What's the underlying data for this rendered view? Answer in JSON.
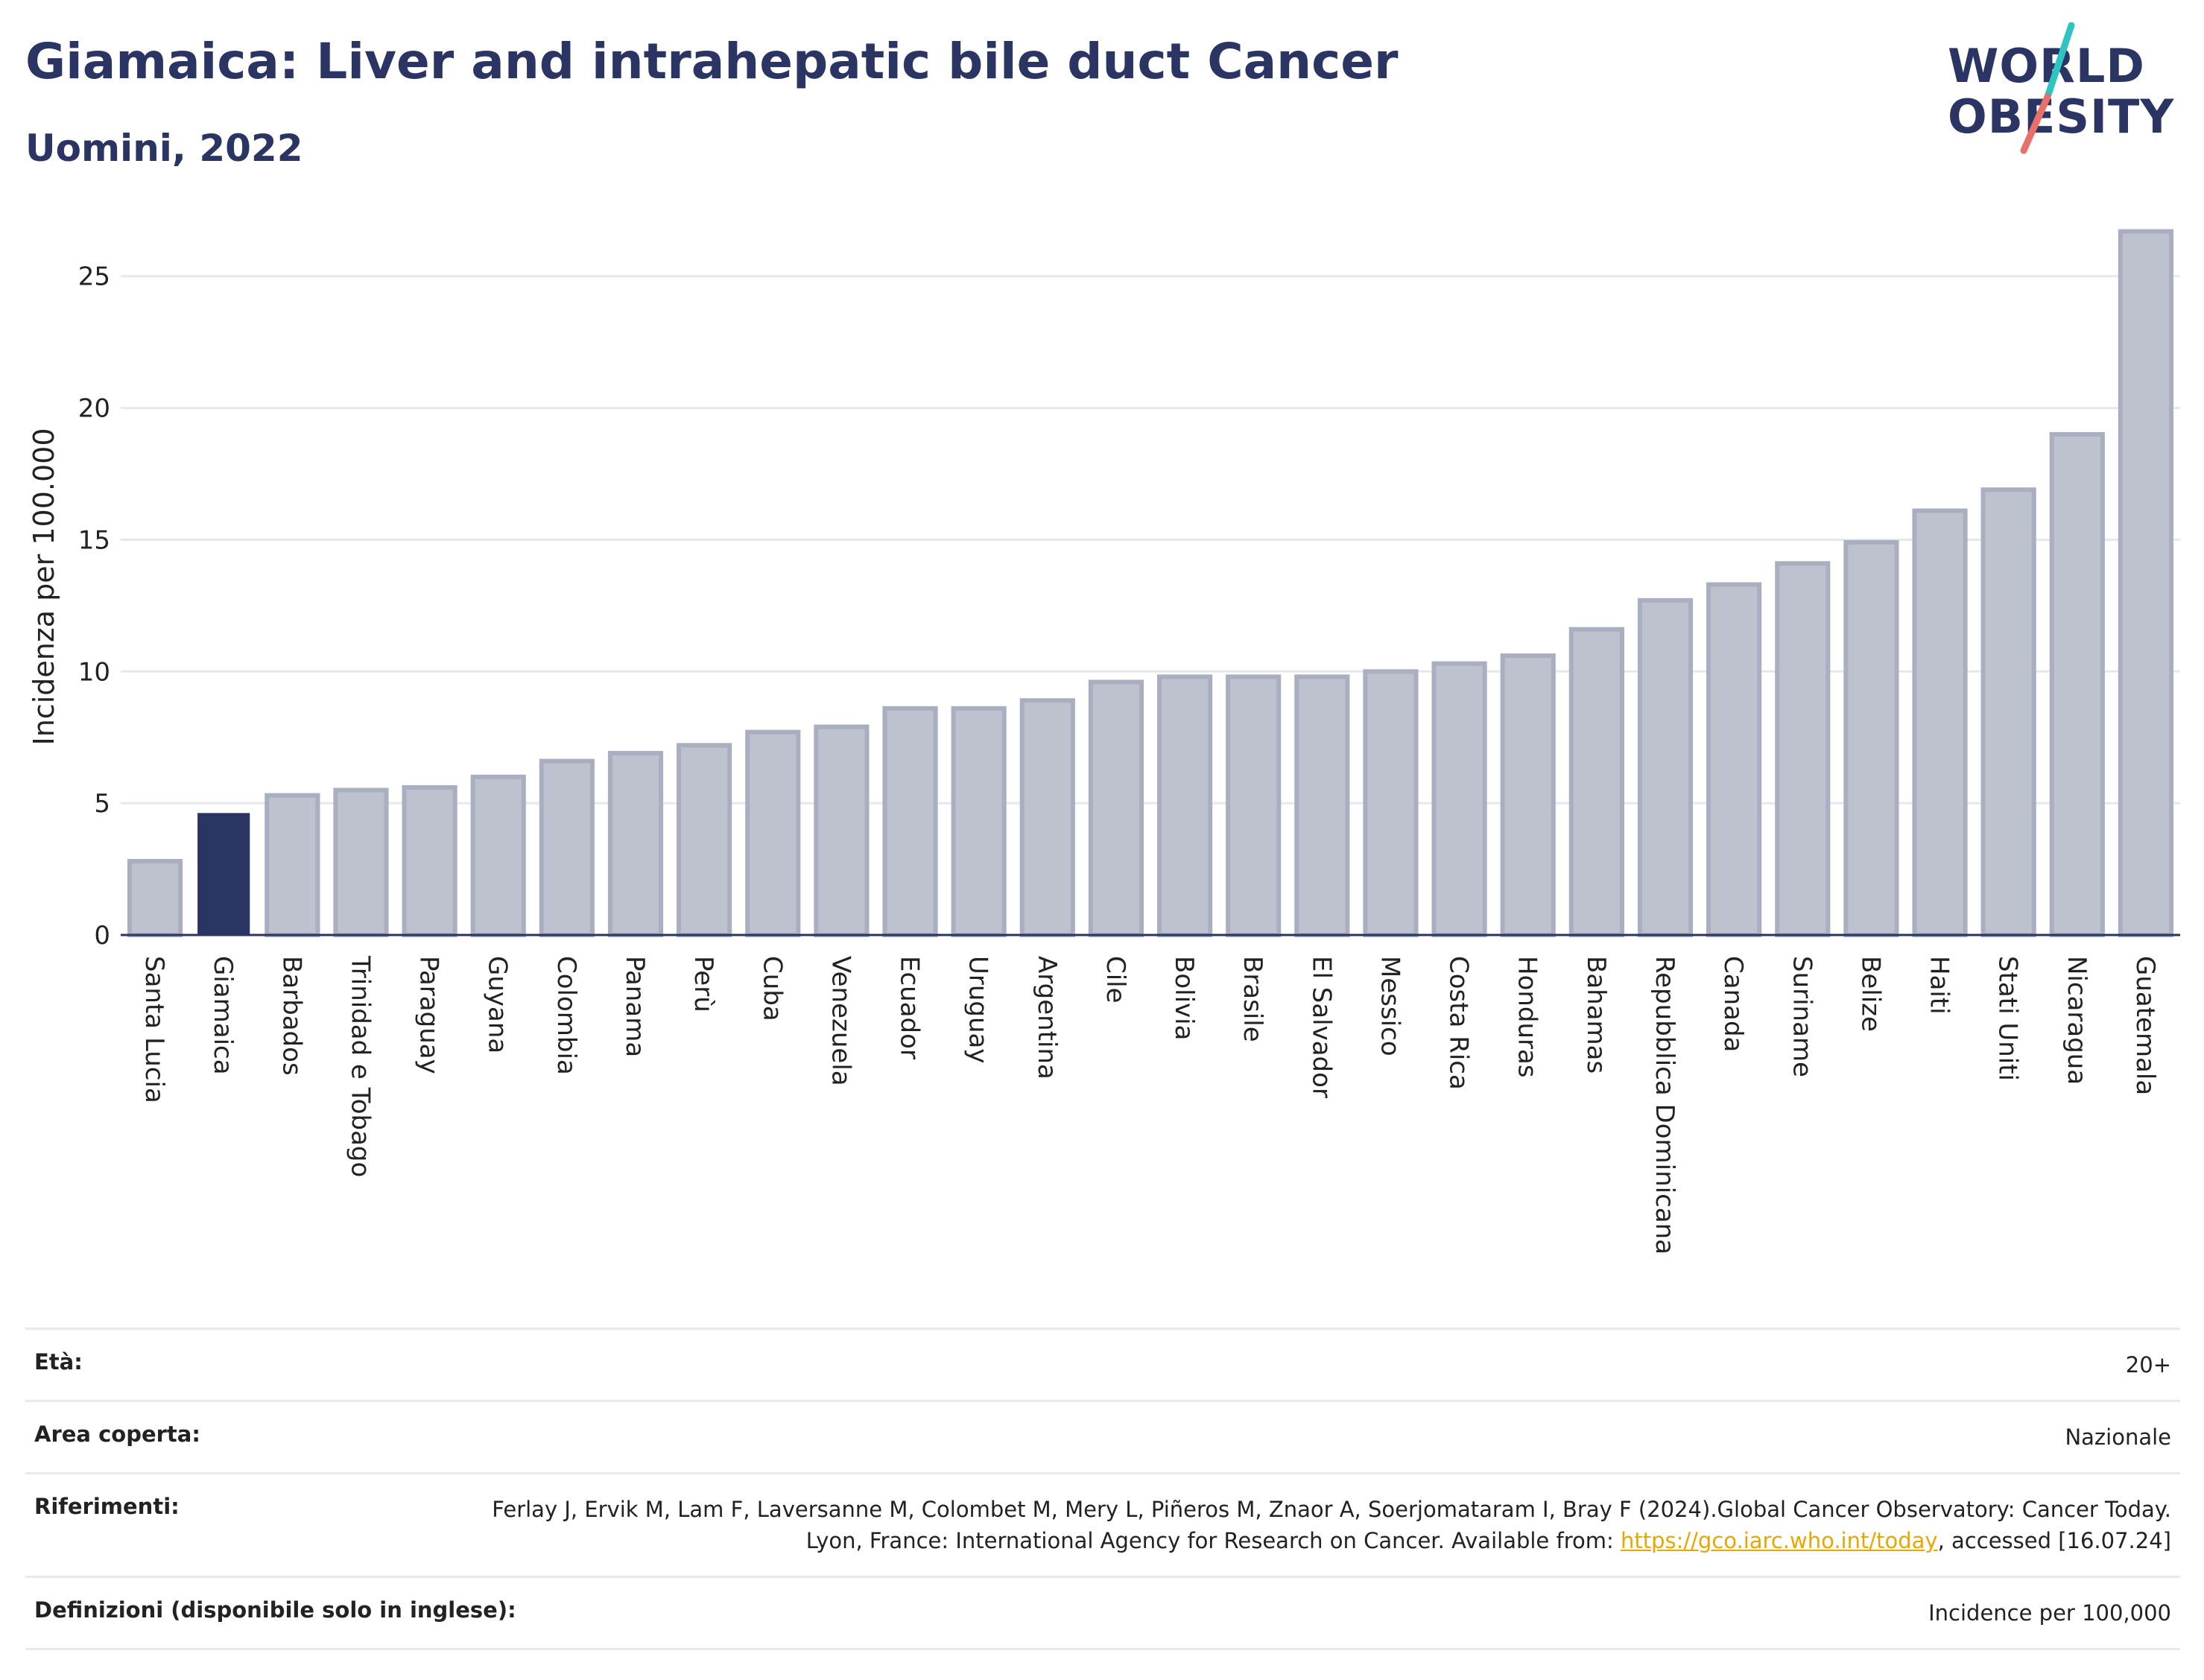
{
  "header": {
    "title": "Giamaica: Liver and intrahepatic bile duct Cancer",
    "subtitle": "Uomini, 2022"
  },
  "logo": {
    "line1": "WORLD",
    "line2": "OBESITY",
    "accent_colors": [
      "#2ec4c1",
      "#e8706a"
    ]
  },
  "chart_data": {
    "type": "bar",
    "ylabel": "Incidenza per 100.000",
    "ylim": [
      0,
      27
    ],
    "yticks": [
      0,
      5,
      10,
      15,
      20,
      25
    ],
    "grid": true,
    "highlight": "Giamaica",
    "colors": {
      "default": "#bec2cf",
      "default_border": "#a9aec0",
      "highlight": "#2b3563"
    },
    "categories": [
      "Santa Lucia",
      "Giamaica",
      "Barbados",
      "Trinidad e Tobago",
      "Paraguay",
      "Guyana",
      "Colombia",
      "Panama",
      "Perù",
      "Cuba",
      "Venezuela",
      "Ecuador",
      "Uruguay",
      "Argentina",
      "Cile",
      "Bolivia",
      "Brasile",
      "El Salvador",
      "Messico",
      "Costa Rica",
      "Honduras",
      "Bahamas",
      "Repubblica Dominicana",
      "Canada",
      "Suriname",
      "Belize",
      "Haiti",
      "Stati Uniti",
      "Nicaragua",
      "Guatemala"
    ],
    "values": [
      2.8,
      4.6,
      5.3,
      5.5,
      5.6,
      6.0,
      6.6,
      6.9,
      7.2,
      7.7,
      7.9,
      8.6,
      8.6,
      8.9,
      9.6,
      9.8,
      9.8,
      9.8,
      10.0,
      10.3,
      10.6,
      11.6,
      12.7,
      13.3,
      14.1,
      14.9,
      16.1,
      16.9,
      19.0,
      26.7
    ]
  },
  "meta": {
    "age_label": "Età:",
    "age_value": "20+",
    "area_label": "Area coperta:",
    "area_value": "Nazionale",
    "ref_label": "Riferimenti:",
    "ref_text_1": "Ferlay J, Ervik M, Lam F, Laversanne M, Colombet M, Mery L, Piñeros M, Znaor A, Soerjomataram I, Bray F (2024).Global Cancer Observatory: Cancer Today. Lyon, France: International Agency for Research on Cancer. Available from: ",
    "ref_link": "https://gco.iarc.who.int/today",
    "ref_text_2": ", accessed [16.07.24]",
    "def_label": "Definizioni (disponibile solo in inglese):",
    "def_value": "Incidence per 100,000"
  }
}
